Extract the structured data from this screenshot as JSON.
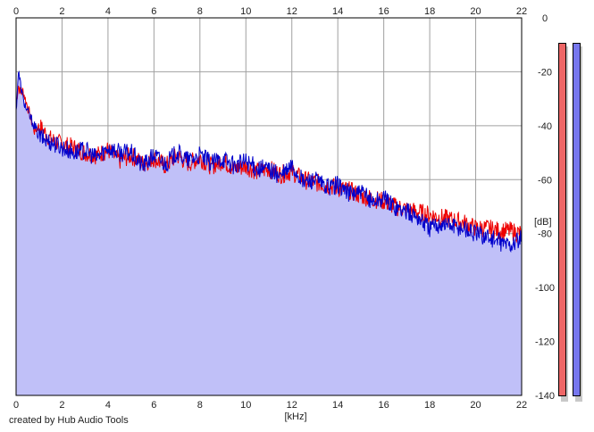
{
  "chart_data": {
    "type": "line",
    "xlabel": "[kHz]",
    "ylabel": "[dB]",
    "xlim": [
      0,
      22
    ],
    "ylim": [
      -140,
      0
    ],
    "x_ticks": [
      "0",
      "2",
      "4",
      "6",
      "8",
      "10",
      "12",
      "14",
      "16",
      "18",
      "20",
      "22"
    ],
    "y_ticks": [
      "0",
      "-20",
      "-40",
      "-60",
      "-80",
      "-100",
      "-120",
      "-140"
    ],
    "grid": true,
    "series": [
      {
        "color": "#ee0000",
        "x": [
          0,
          0.1,
          0.2,
          0.3,
          0.5,
          0.8,
          1,
          1.5,
          2,
          2.5,
          3,
          3.5,
          4,
          4.5,
          5,
          5.5,
          6,
          6.5,
          7,
          7.5,
          8,
          8.5,
          9,
          9.5,
          10,
          10.5,
          11,
          11.5,
          12,
          12.5,
          13,
          13.5,
          14,
          14.5,
          15,
          15.5,
          16,
          16.5,
          17,
          17.5,
          18,
          18.5,
          19,
          19.5,
          20,
          20.5,
          21,
          21.5,
          22
        ],
        "y": [
          -32,
          -25,
          -28,
          -27,
          -33,
          -42,
          -40,
          -45,
          -47,
          -48,
          -50,
          -51,
          -49,
          -53,
          -51,
          -54,
          -52,
          -55,
          -51,
          -54,
          -52,
          -55,
          -53,
          -56,
          -55,
          -57,
          -56,
          -58,
          -57,
          -60,
          -61,
          -62,
          -63,
          -64,
          -66,
          -67,
          -68,
          -70,
          -71,
          -72,
          -73,
          -74,
          -75,
          -76,
          -78,
          -78,
          -79,
          -79,
          -80
        ]
      },
      {
        "color": "#0000cc",
        "x": [
          0,
          0.1,
          0.2,
          0.3,
          0.5,
          0.8,
          1,
          1.5,
          2,
          2.5,
          3,
          3.5,
          4,
          4.5,
          5,
          5.5,
          6,
          6.5,
          7,
          7.5,
          8,
          8.5,
          9,
          9.5,
          10,
          10.5,
          11,
          11.5,
          12,
          12.5,
          13,
          13.5,
          14,
          14.5,
          15,
          15.5,
          16,
          16.5,
          17,
          17.5,
          18,
          18.5,
          19,
          19.5,
          20,
          20.5,
          21,
          21.5,
          22
        ],
        "y": [
          -35,
          -20,
          -25,
          -30,
          -35,
          -40,
          -44,
          -46,
          -48,
          -50,
          -49,
          -52,
          -48,
          -50,
          -50,
          -55,
          -51,
          -54,
          -50,
          -53,
          -51,
          -54,
          -52,
          -55,
          -53,
          -56,
          -56,
          -59,
          -55,
          -61,
          -60,
          -63,
          -62,
          -65,
          -65,
          -68,
          -67,
          -70,
          -72,
          -74,
          -78,
          -76,
          -77,
          -78,
          -80,
          -81,
          -83,
          -84,
          -82
        ]
      }
    ],
    "fill_color": "#c0c0f8",
    "meters": [
      {
        "color": "#ee6666",
        "level": 1.0
      },
      {
        "color": "#7777ee",
        "level": 1.0
      }
    ]
  },
  "footer": {
    "credit": "created by Hub Audio Tools"
  }
}
